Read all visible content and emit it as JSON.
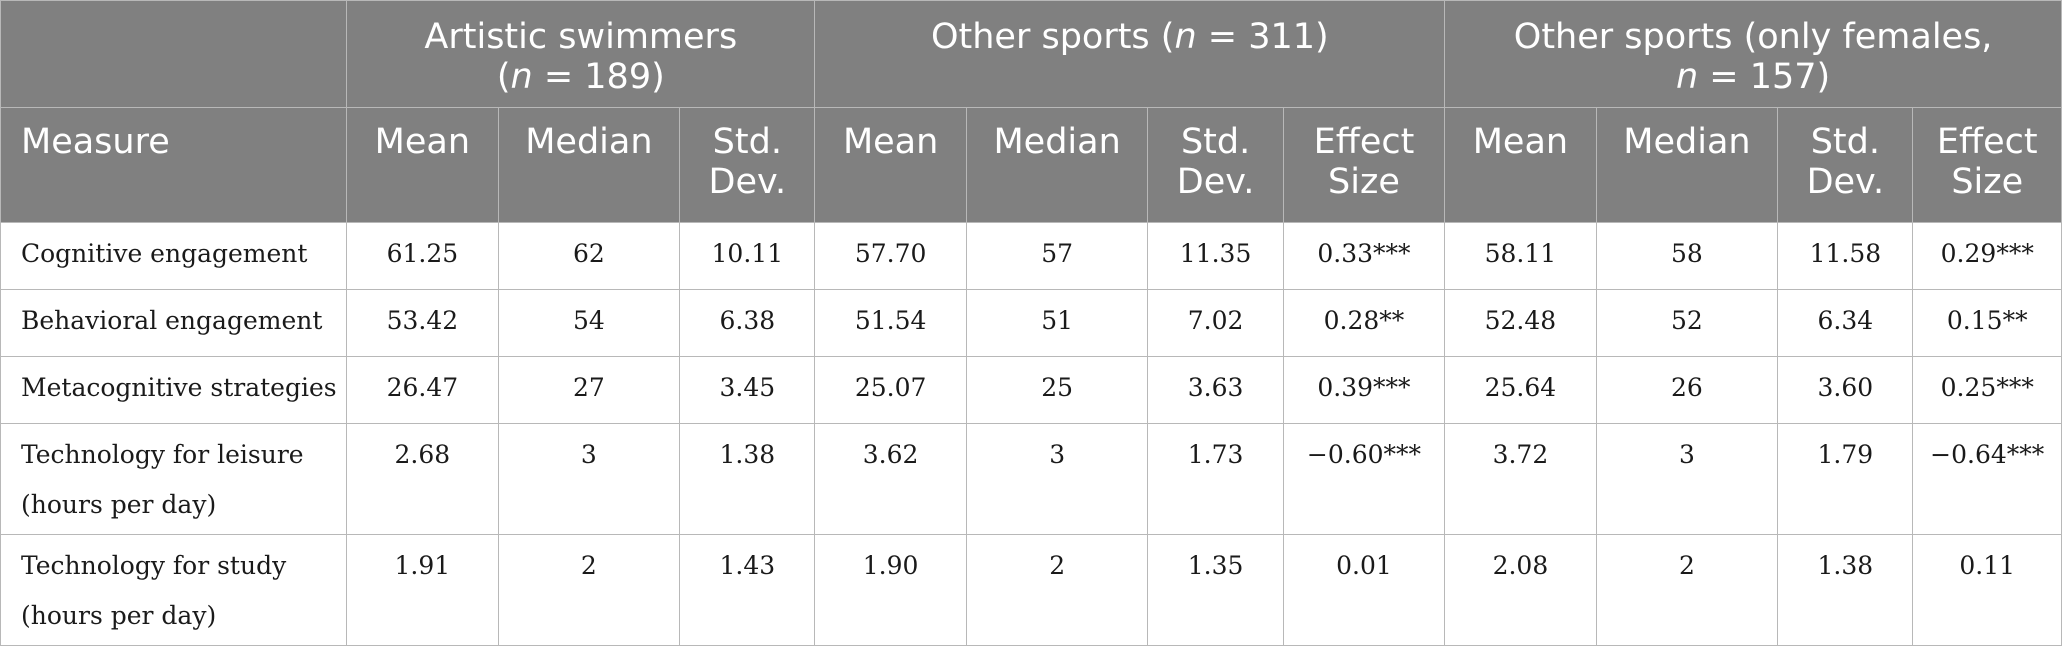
{
  "table": {
    "group_headers": [
      {
        "label": ""
      },
      {
        "prefix": "Artistic swimmers",
        "break": true,
        "n_var": "n",
        "n_rest": " = 189)",
        "open": "("
      },
      {
        "prefix": "Other sports (",
        "n_var": "n",
        "n_rest": " = 311)"
      },
      {
        "prefix": "Other sports (only females,",
        "break": true,
        "n_var": "n",
        "n_rest": " = 157)"
      }
    ],
    "column_headers": {
      "measure": "Measure",
      "mean": "Mean",
      "median": "Median",
      "std_line1": "Std.",
      "std_line2": "Dev.",
      "effect_line1": "Effect",
      "effect_line2": "Size"
    },
    "rows": [
      {
        "measure_line1": "Cognitive engagement",
        "measure_line2": "",
        "cells": [
          "61.25",
          "62",
          "10.11",
          "57.70",
          "57",
          "11.35",
          "0.33***",
          "58.11",
          "58",
          "11.58",
          "0.29***"
        ]
      },
      {
        "measure_line1": "Behavioral engagement",
        "measure_line2": "",
        "cells": [
          "53.42",
          "54",
          "6.38",
          "51.54",
          "51",
          "7.02",
          "0.28**",
          "52.48",
          "52",
          "6.34",
          "0.15**"
        ]
      },
      {
        "measure_line1": "Metacognitive strategies",
        "measure_line2": "",
        "cells": [
          "26.47",
          "27",
          "3.45",
          "25.07",
          "25",
          "3.63",
          "0.39***",
          "25.64",
          "26",
          "3.60",
          "0.25***"
        ]
      },
      {
        "measure_line1": "Technology for leisure",
        "measure_line2": "(hours per day)",
        "cells": [
          "2.68",
          "3",
          "1.38",
          "3.62",
          "3",
          "1.73",
          "−0.60***",
          "3.72",
          "3",
          "1.79",
          "−0.64***"
        ]
      },
      {
        "measure_line1": "Technology for study",
        "measure_line2": "(hours per day)",
        "cells": [
          "1.91",
          "2",
          "1.43",
          "1.90",
          "2",
          "1.35",
          "0.01",
          "2.08",
          "2",
          "1.38",
          "0.11"
        ]
      }
    ]
  }
}
